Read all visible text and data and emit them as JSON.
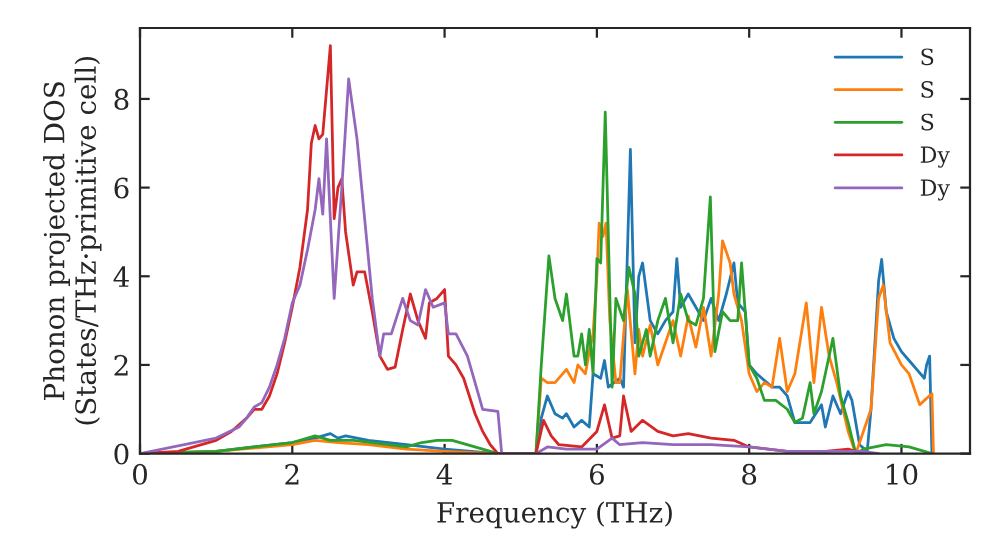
{
  "chart_data": {
    "type": "line",
    "xlabel": "Frequency (THz)",
    "ylabel": "Phonon projected DOS\n(States/THz·primitive cell)",
    "xlim": [
      0,
      10.9
    ],
    "ylim": [
      0,
      9.6
    ],
    "xticks": [
      0,
      2,
      4,
      6,
      8,
      10
    ],
    "yticks": [
      0,
      2,
      4,
      6,
      8
    ],
    "grid": false,
    "legend": "top right",
    "marker": "none",
    "line_style": "solid",
    "series": [
      {
        "name": "S",
        "color": "#1f77b4",
        "x": [
          0,
          1,
          2,
          2.3,
          2.5,
          2.6,
          2.7,
          3.0,
          3.5,
          4.0,
          4.7,
          5.2,
          5.27,
          5.35,
          5.45,
          5.55,
          5.6,
          5.7,
          5.8,
          5.9,
          5.95,
          6.05,
          6.1,
          6.15,
          6.3,
          6.35,
          6.44,
          6.5,
          6.55,
          6.6,
          6.7,
          6.8,
          6.9,
          7.0,
          7.05,
          7.1,
          7.2,
          7.3,
          7.4,
          7.5,
          7.6,
          7.7,
          7.8,
          7.85,
          7.95,
          8.0,
          8.1,
          8.3,
          8.4,
          8.5,
          8.6,
          8.8,
          8.95,
          9.0,
          9.1,
          9.2,
          9.3,
          9.35,
          9.45,
          9.55,
          9.6,
          9.7,
          9.74,
          9.8,
          9.9,
          10.0,
          10.1,
          10.2,
          10.3,
          10.33,
          10.37,
          10.4
        ],
        "values": [
          0,
          0.05,
          0.25,
          0.35,
          0.45,
          0.35,
          0.4,
          0.3,
          0.2,
          0.1,
          0,
          0,
          0.8,
          1.3,
          0.9,
          0.8,
          0.9,
          0.6,
          0.75,
          0.6,
          1.8,
          1.7,
          2.1,
          1.5,
          1.7,
          1.5,
          6.86,
          2.5,
          4.0,
          4.3,
          3.0,
          2.7,
          3.0,
          3.2,
          4.4,
          3.3,
          3.6,
          3.3,
          3.0,
          3.5,
          3.0,
          3.6,
          4.3,
          3.4,
          3.2,
          2.0,
          1.8,
          1.5,
          1.5,
          1.3,
          0.7,
          0.7,
          1.1,
          0.6,
          1.3,
          0.9,
          1.4,
          1.2,
          0.2,
          0.05,
          1.0,
          3.9,
          4.38,
          3.2,
          2.6,
          2.3,
          2.1,
          1.9,
          1.7,
          2.0,
          2.2,
          0
        ]
      },
      {
        "name": "S",
        "color": "#ff7f0e",
        "x": [
          0,
          1,
          2,
          2.3,
          2.6,
          3,
          3.5,
          4,
          4.7,
          5.2,
          5.27,
          5.35,
          5.45,
          5.55,
          5.6,
          5.7,
          5.75,
          5.85,
          5.9,
          5.95,
          6.0,
          6.03,
          6.08,
          6.12,
          6.17,
          6.25,
          6.3,
          6.4,
          6.5,
          6.55,
          6.6,
          6.7,
          6.8,
          6.9,
          7.0,
          7.1,
          7.2,
          7.3,
          7.4,
          7.5,
          7.6,
          7.65,
          7.75,
          7.8,
          7.9,
          8.0,
          8.1,
          8.2,
          8.3,
          8.4,
          8.5,
          8.6,
          8.75,
          8.85,
          8.95,
          9.05,
          9.15,
          9.3,
          9.4,
          9.6,
          9.7,
          9.76,
          9.85,
          10.0,
          10.1,
          10.24,
          10.3,
          10.4,
          10.42
        ],
        "values": [
          0,
          0.05,
          0.2,
          0.3,
          0.25,
          0.2,
          0.1,
          0.05,
          0,
          0,
          1.7,
          1.6,
          1.6,
          1.8,
          1.9,
          1.6,
          2.0,
          1.8,
          2.3,
          2.7,
          4.0,
          5.2,
          4.9,
          5.2,
          3.0,
          1.6,
          1.6,
          3.7,
          1.8,
          2.8,
          2.2,
          2.9,
          2.0,
          2.5,
          3.0,
          2.2,
          3.1,
          2.4,
          3.3,
          2.2,
          3.6,
          4.8,
          4.3,
          3.6,
          3.0,
          1.8,
          1.4,
          1.6,
          1.5,
          2.6,
          1.4,
          1.8,
          3.4,
          1.6,
          3.3,
          2.2,
          1.6,
          0.5,
          0,
          1.0,
          3.5,
          3.8,
          2.5,
          2.0,
          1.8,
          1.1,
          1.2,
          1.35,
          0
        ]
      },
      {
        "name": "S",
        "color": "#2ca02c",
        "x": [
          0,
          1,
          2,
          2.3,
          2.5,
          2.8,
          3.5,
          3.7,
          3.9,
          4.1,
          4.5,
          4.7,
          5.2,
          5.27,
          5.37,
          5.45,
          5.55,
          5.6,
          5.7,
          5.75,
          5.8,
          5.85,
          5.9,
          5.95,
          6.0,
          6.05,
          6.11,
          6.2,
          6.25,
          6.35,
          6.42,
          6.5,
          6.55,
          6.65,
          6.7,
          6.8,
          6.9,
          7.0,
          7.1,
          7.2,
          7.3,
          7.4,
          7.49,
          7.55,
          7.65,
          7.75,
          7.85,
          7.9,
          8.0,
          8.1,
          8.2,
          8.35,
          8.5,
          8.6,
          8.7,
          8.8,
          8.85,
          8.95,
          9.1,
          9.2,
          9.3,
          9.4,
          9.5,
          9.8,
          10.1,
          10.4
        ],
        "values": [
          0,
          0.05,
          0.25,
          0.4,
          0.3,
          0.3,
          0.15,
          0.25,
          0.3,
          0.3,
          0.1,
          0,
          0,
          2.0,
          4.46,
          3.5,
          3.0,
          3.6,
          2.2,
          2.2,
          2.7,
          2.0,
          2.8,
          1.8,
          4.4,
          4.3,
          7.7,
          1.5,
          3.5,
          3.0,
          4.2,
          3.6,
          2.2,
          2.8,
          2.2,
          3.0,
          3.5,
          2.5,
          3.6,
          3.0,
          2.9,
          3.5,
          5.79,
          2.3,
          3.2,
          3.0,
          3.0,
          4.3,
          2.0,
          1.7,
          1.2,
          1.2,
          1.0,
          0.7,
          0.8,
          1.6,
          0.9,
          1.4,
          2.6,
          1.3,
          0.7,
          0,
          0.1,
          0.2,
          0.15,
          0
        ]
      },
      {
        "name": "Dy",
        "color": "#d62728",
        "x": [
          0,
          0.5,
          1.0,
          1.2,
          1.4,
          1.5,
          1.6,
          1.7,
          1.8,
          1.9,
          2.0,
          2.1,
          2.2,
          2.25,
          2.3,
          2.35,
          2.4,
          2.5,
          2.55,
          2.6,
          2.65,
          2.7,
          2.8,
          2.85,
          2.95,
          3.05,
          3.15,
          3.25,
          3.35,
          3.45,
          3.55,
          3.65,
          3.75,
          3.8,
          3.9,
          4.0,
          4.05,
          4.15,
          4.25,
          4.4,
          4.5,
          4.6,
          4.7,
          5.2,
          5.3,
          5.4,
          5.5,
          5.8,
          6.0,
          6.1,
          6.2,
          6.3,
          6.35,
          6.45,
          6.6,
          6.8,
          7.0,
          7.2,
          7.5,
          7.8,
          8.0,
          8.5,
          9.0,
          9.3,
          9.5
        ],
        "values": [
          0,
          0.05,
          0.3,
          0.5,
          0.8,
          1.0,
          1.0,
          1.3,
          1.8,
          2.5,
          3.3,
          4.2,
          5.5,
          7.0,
          7.4,
          7.1,
          7.2,
          9.2,
          5.3,
          6.0,
          6.2,
          5.0,
          3.8,
          4.1,
          4.1,
          3.2,
          2.2,
          1.9,
          1.95,
          2.8,
          3.6,
          3.0,
          2.6,
          3.4,
          3.5,
          3.7,
          2.2,
          2.0,
          1.7,
          0.9,
          0.5,
          0.2,
          0,
          0,
          0.75,
          0.4,
          0.2,
          0.15,
          0.5,
          1.1,
          0.35,
          0.4,
          1.3,
          0.5,
          0.75,
          0.5,
          0.4,
          0.45,
          0.35,
          0.3,
          0.15,
          0.05,
          0.05,
          0.1,
          0
        ]
      },
      {
        "name": "Dy",
        "color": "#9467bd",
        "x": [
          0,
          1.0,
          1.3,
          1.4,
          1.5,
          1.6,
          1.7,
          1.8,
          1.9,
          2.0,
          2.1,
          2.2,
          2.3,
          2.35,
          2.4,
          2.45,
          2.55,
          2.65,
          2.74,
          2.85,
          2.95,
          3.05,
          3.15,
          3.2,
          3.3,
          3.45,
          3.55,
          3.65,
          3.75,
          3.85,
          4.0,
          4.05,
          4.15,
          4.3,
          4.45,
          4.5,
          4.7,
          4.75,
          5.2,
          5.35,
          5.6,
          6.0,
          6.2,
          6.3,
          6.6,
          7.0,
          7.5,
          8.0,
          8.5,
          9.5,
          9.7
        ],
        "values": [
          0,
          0.35,
          0.6,
          0.8,
          1.05,
          1.15,
          1.5,
          2.0,
          2.6,
          3.4,
          3.8,
          4.6,
          5.5,
          6.2,
          5.4,
          7.1,
          3.5,
          6.0,
          8.45,
          7.1,
          5.3,
          3.5,
          2.2,
          2.7,
          2.7,
          3.5,
          3.0,
          2.9,
          3.7,
          3.3,
          3.4,
          2.7,
          2.7,
          2.2,
          1.3,
          1.0,
          0.95,
          0,
          0,
          0.15,
          0.1,
          0.1,
          0.35,
          0.2,
          0.25,
          0.2,
          0.2,
          0.15,
          0.05,
          0.05,
          0
        ]
      }
    ]
  }
}
